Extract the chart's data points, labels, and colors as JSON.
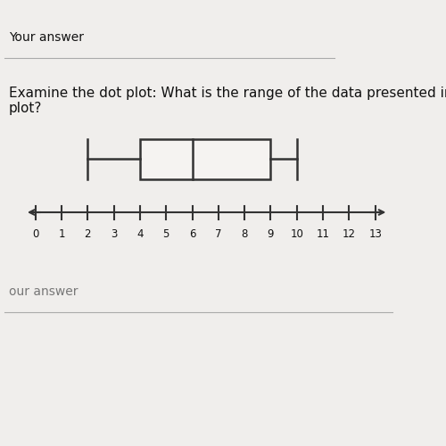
{
  "background_top": "#f0eeec",
  "background_mid": "#c8c4be",
  "background_bottom": "#1a1a1a",
  "white_panel": "#f5f3f1",
  "status_bar_color": "#2a2a2a",
  "title_text": "Examine the dot plot: What is the range of the data presented in the box\nplot?",
  "title_fontsize": 11,
  "your_answer_text": "Your answer",
  "our_answer_text": "our answer",
  "axis_min": 0,
  "axis_max": 13,
  "whisker_min": 2,
  "q1": 4,
  "median": 6,
  "q3": 9,
  "whisker_max": 10,
  "tick_labels": [
    "0",
    "1",
    "2",
    "3",
    "4",
    "5",
    "6",
    "7",
    "8",
    "9",
    "10",
    "11",
    "12",
    "13"
  ],
  "line_color": "#333333",
  "text_color": "#111111",
  "gray_text_color": "#777777"
}
